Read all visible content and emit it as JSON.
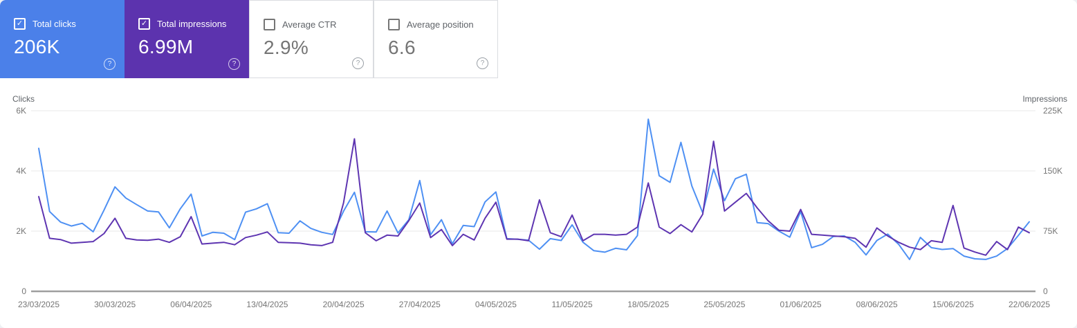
{
  "cards": [
    {
      "label": "Total clicks",
      "value": "206K",
      "selected": true,
      "bg": "#4b80e9"
    },
    {
      "label": "Total impressions",
      "value": "6.99M",
      "selected": true,
      "bg": "#5c33ae"
    },
    {
      "label": "Average CTR",
      "value": "2.9%",
      "selected": false,
      "bg": "#ffffff"
    },
    {
      "label": "Average position",
      "value": "6.6",
      "selected": false,
      "bg": "#ffffff"
    }
  ],
  "chart_data": {
    "type": "line",
    "grid": true,
    "legend_position": "none",
    "x_tick_labels": [
      "23/03/2025",
      "30/03/2025",
      "06/04/2025",
      "13/04/2025",
      "20/04/2025",
      "27/04/2025",
      "04/05/2025",
      "11/05/2025",
      "18/05/2025",
      "25/05/2025",
      "01/06/2025",
      "08/06/2025",
      "15/06/2025",
      "22/06/2025"
    ],
    "left_axis": {
      "title": "Clicks",
      "ticks": [
        "0",
        "2K",
        "4K",
        "6K"
      ],
      "max": 6000
    },
    "right_axis": {
      "title": "Impressions",
      "ticks": [
        "0",
        "75K",
        "150K",
        "225K"
      ],
      "max": 225000
    },
    "series": [
      {
        "name": "Total clicks",
        "slug": "clicks-line",
        "axis": "left",
        "color": "#4e90f3",
        "values": [
          4750,
          2650,
          2300,
          2170,
          2260,
          1980,
          2700,
          3470,
          3100,
          2880,
          2670,
          2640,
          2110,
          2740,
          3230,
          1840,
          1960,
          1930,
          1720,
          2630,
          2740,
          2910,
          1950,
          1930,
          2340,
          2090,
          1960,
          1890,
          2660,
          3290,
          1980,
          1970,
          2670,
          1940,
          2380,
          3680,
          1880,
          2380,
          1580,
          2190,
          2150,
          2970,
          3300,
          1750,
          1730,
          1700,
          1400,
          1750,
          1690,
          2210,
          1630,
          1350,
          1300,
          1430,
          1380,
          1850,
          5720,
          3840,
          3620,
          4950,
          3500,
          2610,
          4060,
          3010,
          3740,
          3890,
          2280,
          2250,
          2000,
          1800,
          2650,
          1450,
          1560,
          1820,
          1840,
          1630,
          1210,
          1690,
          1900,
          1560,
          1060,
          1790,
          1450,
          1390,
          1420,
          1170,
          1080,
          1060,
          1170,
          1420,
          1860,
          2310
        ]
      },
      {
        "name": "Total impressions",
        "slug": "impressions-line",
        "axis": "right",
        "color": "#5e35b1",
        "values": [
          118000,
          66000,
          64500,
          60000,
          61000,
          62000,
          72000,
          91000,
          66000,
          64000,
          63500,
          65000,
          61000,
          68000,
          93000,
          59000,
          60000,
          61000,
          58000,
          67000,
          70000,
          74000,
          61000,
          60500,
          60000,
          58000,
          57000,
          61000,
          110000,
          190000,
          73000,
          63000,
          70000,
          69000,
          88000,
          110000,
          67000,
          77000,
          57000,
          71000,
          64000,
          91000,
          111000,
          65000,
          65000,
          63000,
          114000,
          73000,
          68000,
          95000,
          63000,
          71000,
          71000,
          70000,
          71000,
          80000,
          135000,
          80000,
          72000,
          83000,
          74000,
          96000,
          187000,
          100000,
          111000,
          122000,
          104000,
          88000,
          76000,
          75000,
          102000,
          71000,
          70000,
          69000,
          68000,
          66000,
          55000,
          79000,
          69000,
          61000,
          55000,
          52000,
          63000,
          61000,
          107000,
          54000,
          49000,
          45000,
          62000,
          52000,
          80000,
          73000
        ]
      }
    ]
  }
}
